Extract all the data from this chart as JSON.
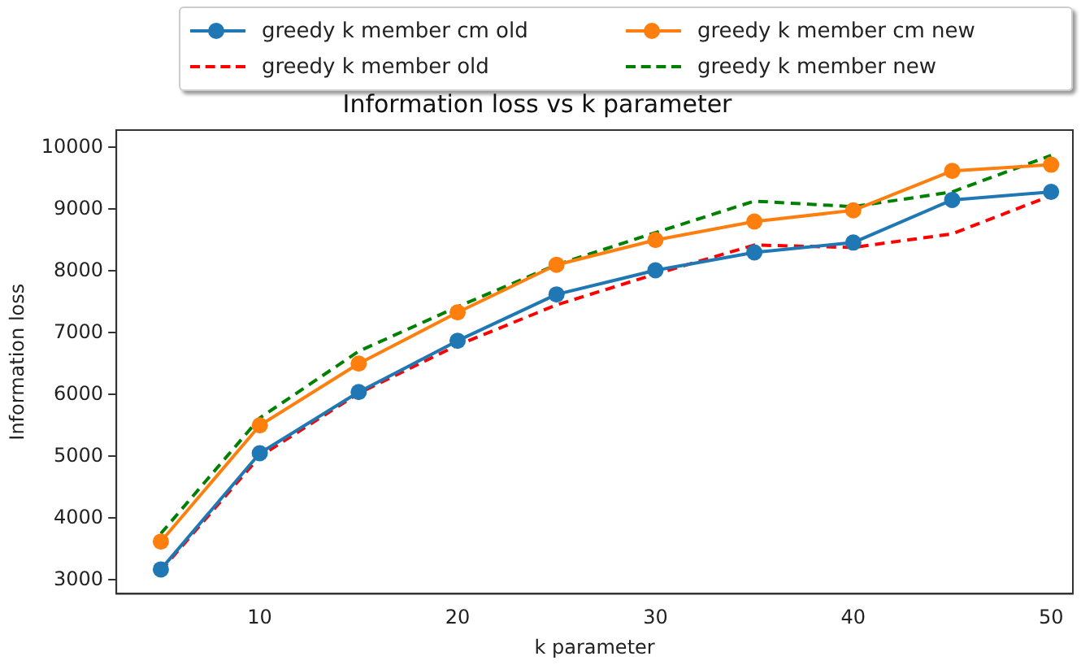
{
  "chart_data": {
    "type": "line",
    "title": "Information loss vs k parameter",
    "xlabel": "k parameter",
    "ylabel": "Information loss",
    "x": [
      5,
      10,
      15,
      20,
      25,
      30,
      35,
      40,
      45,
      50
    ],
    "series": [
      {
        "name": "greedy k member cm old",
        "color": "#1f77b4",
        "marker": "circle",
        "line_style": "solid",
        "values": [
          3170,
          5050,
          6040,
          6870,
          7620,
          8010,
          8300,
          8460,
          9150,
          9280
        ]
      },
      {
        "name": "greedy k member cm new",
        "color": "#ff7f0e",
        "marker": "circle",
        "line_style": "solid",
        "values": [
          3620,
          5500,
          6500,
          7330,
          8100,
          8500,
          8800,
          8980,
          9620,
          9720
        ]
      },
      {
        "name": "greedy k member old",
        "color": "#ff0000",
        "marker": "none",
        "line_style": "dashed",
        "values": [
          3150,
          5000,
          6020,
          6800,
          7450,
          7950,
          8420,
          8380,
          8600,
          9220
        ]
      },
      {
        "name": "greedy k member new",
        "color": "#008000",
        "marker": "none",
        "line_style": "dashed",
        "values": [
          3750,
          5620,
          6700,
          7420,
          8100,
          8620,
          9130,
          9040,
          9280,
          9870
        ]
      }
    ],
    "xlim": [
      2.75,
      51.1
    ],
    "xticks": [
      10,
      20,
      30,
      40,
      50
    ],
    "ylim": [
      2775,
      10280
    ],
    "yticks": [
      3000,
      4000,
      5000,
      6000,
      7000,
      8000,
      9000,
      10000
    ],
    "grid": false,
    "legend": "top"
  }
}
